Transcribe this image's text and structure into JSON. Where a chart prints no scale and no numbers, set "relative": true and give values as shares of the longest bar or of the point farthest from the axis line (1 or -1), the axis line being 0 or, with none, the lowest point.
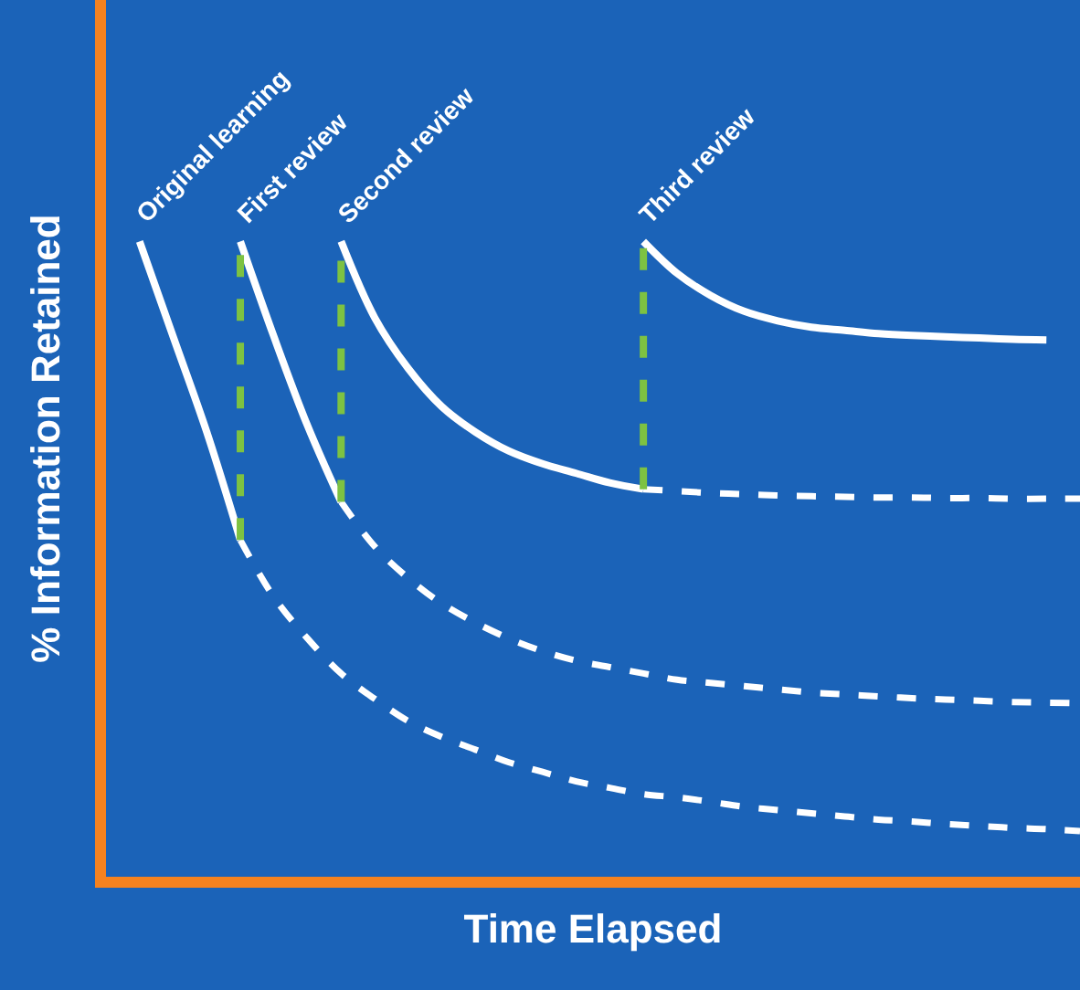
{
  "chart_data": {
    "type": "line",
    "relative": true,
    "xlabel": "Time Elapsed",
    "ylabel": "% Information Retained",
    "grid": false,
    "marker": "none",
    "categories": [
      null,
      null,
      null,
      null,
      null,
      null,
      null,
      null,
      null,
      null,
      null,
      null,
      null,
      null,
      null,
      null,
      null,
      null,
      null,
      null,
      null,
      null,
      null,
      null,
      null,
      null,
      null,
      null,
      null,
      null
    ],
    "series": [
      {
        "color": "#ffffff",
        "line_style": "solid",
        "values": [
          null,
          1.0,
          0.85,
          0.7,
          0.53,
          null,
          null,
          null,
          null,
          null,
          null,
          null,
          null,
          null,
          null,
          null,
          null,
          null,
          null,
          null,
          null,
          null,
          null,
          null,
          null,
          null,
          null,
          null,
          null,
          null
        ]
      },
      {
        "color": "#ffffff",
        "line_style": "dashed",
        "values": [
          null,
          null,
          null,
          null,
          0.53,
          0.44,
          0.375,
          0.32,
          0.28,
          0.245,
          0.22,
          0.2,
          0.18,
          0.165,
          0.15,
          0.14,
          0.13,
          0.125,
          0.118,
          0.11,
          0.105,
          0.1,
          0.095,
          0.09,
          0.087,
          0.083,
          0.08,
          0.077,
          0.075,
          0.072
        ]
      },
      {
        "color": "#ffffff",
        "line_style": "solid",
        "values": [
          null,
          null,
          null,
          null,
          1.0,
          0.85,
          0.71,
          0.59,
          null,
          null,
          null,
          null,
          null,
          null,
          null,
          null,
          null,
          null,
          null,
          null,
          null,
          null,
          null,
          null,
          null,
          null,
          null,
          null,
          null,
          null
        ]
      },
      {
        "color": "#ffffff",
        "line_style": "dashed",
        "values": [
          null,
          null,
          null,
          null,
          null,
          null,
          null,
          0.59,
          0.52,
          0.47,
          0.43,
          0.4,
          0.375,
          0.355,
          0.34,
          0.33,
          0.32,
          0.31,
          0.305,
          0.3,
          0.295,
          0.29,
          0.287,
          0.284,
          0.281,
          0.279,
          0.277,
          0.275,
          0.274,
          0.273
        ]
      },
      {
        "color": "#ffffff",
        "line_style": "solid",
        "values": [
          null,
          null,
          null,
          null,
          null,
          null,
          null,
          1.0,
          0.88,
          0.8,
          0.74,
          0.7,
          0.67,
          0.65,
          0.635,
          0.62,
          0.61,
          null,
          null,
          null,
          null,
          null,
          null,
          null,
          null,
          null,
          null,
          null,
          null,
          null
        ]
      },
      {
        "color": "#ffffff",
        "line_style": "dashed",
        "values": [
          null,
          null,
          null,
          null,
          null,
          null,
          null,
          null,
          null,
          null,
          null,
          null,
          null,
          null,
          null,
          null,
          0.61,
          0.607,
          0.604,
          0.602,
          0.6,
          0.599,
          0.598,
          0.597,
          0.597,
          0.596,
          0.596,
          0.595,
          0.595,
          0.595
        ]
      },
      {
        "color": "#ffffff",
        "line_style": "solid",
        "values": [
          null,
          null,
          null,
          null,
          null,
          null,
          null,
          null,
          null,
          null,
          null,
          null,
          null,
          null,
          null,
          null,
          1.0,
          0.95,
          0.915,
          0.89,
          0.875,
          0.865,
          0.86,
          0.855,
          0.852,
          0.85,
          0.848,
          0.846,
          0.845,
          null
        ]
      }
    ],
    "annotations": [
      "Original learning",
      "First review",
      "Second review",
      "Third review"
    ]
  }
}
